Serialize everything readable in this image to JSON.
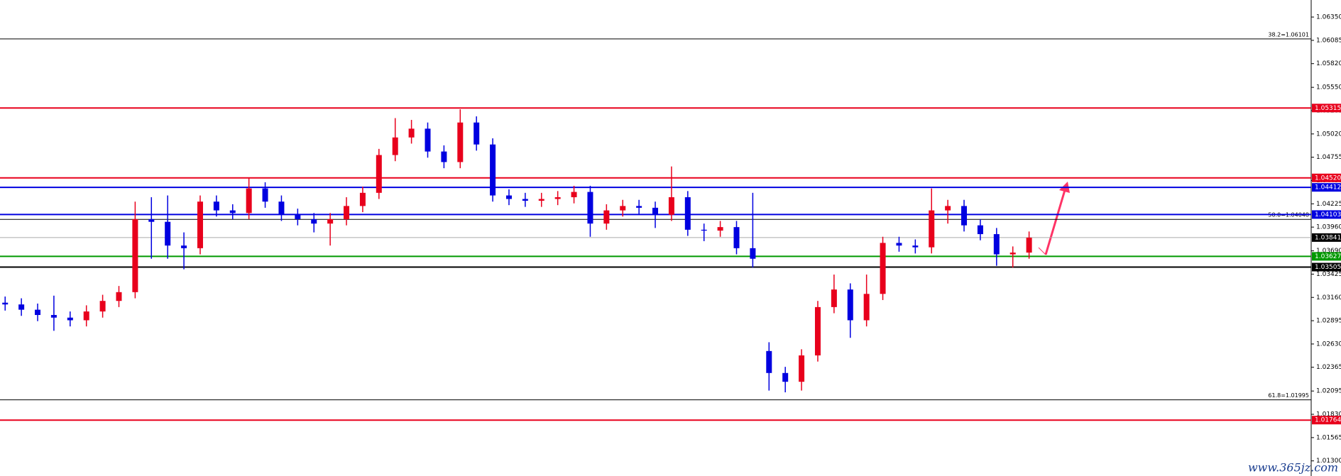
{
  "chart_data": {
    "type": "candlestick",
    "ylim": [
      1.01128,
      1.06544
    ],
    "yticks": [
      {
        "value": 1.0635,
        "label": "1.06350"
      },
      {
        "value": 1.06085,
        "label": "1.06085"
      },
      {
        "value": 1.0582,
        "label": "1.05820"
      },
      {
        "value": 1.0555,
        "label": "1.05550"
      },
      {
        "value": 1.05285,
        "label": "1.05285"
      },
      {
        "value": 1.0502,
        "label": "1.05020"
      },
      {
        "value": 1.04755,
        "label": "1.04755"
      },
      {
        "value": 1.0449,
        "label": "1.04490"
      },
      {
        "value": 1.04225,
        "label": "1.04225"
      },
      {
        "value": 1.0396,
        "label": "1.03960"
      },
      {
        "value": 1.0369,
        "label": "1.03690"
      },
      {
        "value": 1.03425,
        "label": "1.03425"
      },
      {
        "value": 1.0316,
        "label": "1.03160"
      },
      {
        "value": 1.02895,
        "label": "1.02895"
      },
      {
        "value": 1.0263,
        "label": "1.02630"
      },
      {
        "value": 1.02365,
        "label": "1.02365"
      },
      {
        "value": 1.02095,
        "label": "1.02095"
      },
      {
        "value": 1.0183,
        "label": "1.01830"
      },
      {
        "value": 1.01565,
        "label": "1.01565"
      },
      {
        "value": 1.013,
        "label": "1.01300"
      }
    ],
    "up_color": "#e8001c",
    "down_color": "#0000e0",
    "open": [
      1.031,
      1.0308,
      1.0302,
      1.0296,
      1.0293,
      1.029,
      1.03,
      1.0312,
      1.0322,
      1.0405,
      1.0402,
      1.0375,
      1.0372,
      1.0425,
      1.0415,
      1.0412,
      1.044,
      1.0425,
      1.041,
      1.0405,
      1.04,
      1.0405,
      1.042,
      1.0435,
      1.0478,
      1.0498,
      1.0508,
      1.0482,
      1.047,
      1.0515,
      1.049,
      1.0432,
      1.0428,
      1.0426,
      1.0428,
      1.043,
      1.0436,
      1.04,
      1.0415,
      1.042,
      1.0418,
      1.041,
      1.043,
      1.0393,
      1.0392,
      1.0396,
      1.0372,
      1.0255,
      1.023,
      1.022,
      1.025,
      1.0305,
      1.0325,
      1.029,
      1.032,
      1.0378,
      1.0375,
      1.0373,
      1.0415,
      1.042,
      1.0398,
      1.0388,
      1.0365,
      1.0367
    ],
    "high": [
      1.0317,
      1.0315,
      1.0309,
      1.0318,
      1.03,
      1.0307,
      1.0319,
      1.0329,
      1.0425,
      1.043,
      1.0432,
      1.039,
      1.0432,
      1.0432,
      1.0422,
      1.0452,
      1.0447,
      1.0432,
      1.0417,
      1.0412,
      1.0412,
      1.043,
      1.0442,
      1.0485,
      1.052,
      1.0518,
      1.0515,
      1.0489,
      1.053,
      1.0522,
      1.0497,
      1.0439,
      1.0435,
      1.0435,
      1.0437,
      1.0443,
      1.0443,
      1.0422,
      1.0427,
      1.0427,
      1.0425,
      1.0465,
      1.0437,
      1.04,
      1.0403,
      1.0403,
      1.0435,
      1.0265,
      1.0237,
      1.0257,
      1.0312,
      1.0342,
      1.0332,
      1.0342,
      1.0385,
      1.0385,
      1.0382,
      1.044,
      1.0427,
      1.0427,
      1.0405,
      1.0395,
      1.0374,
      1.0391
    ],
    "low": [
      1.0301,
      1.0295,
      1.0289,
      1.0278,
      1.0283,
      1.0283,
      1.0293,
      1.0305,
      1.0315,
      1.036,
      1.036,
      1.0348,
      1.0365,
      1.0408,
      1.0405,
      1.0405,
      1.0418,
      1.0403,
      1.0398,
      1.039,
      1.0375,
      1.0398,
      1.0413,
      1.0428,
      1.0471,
      1.0491,
      1.0475,
      1.0463,
      1.0463,
      1.0483,
      1.0425,
      1.0421,
      1.0419,
      1.0419,
      1.0421,
      1.0423,
      1.0385,
      1.0393,
      1.0408,
      1.0411,
      1.0395,
      1.0403,
      1.0386,
      1.038,
      1.0385,
      1.0365,
      1.035,
      1.021,
      1.0208,
      1.021,
      1.0243,
      1.0298,
      1.027,
      1.0283,
      1.0313,
      1.0368,
      1.0366,
      1.0366,
      1.04,
      1.0391,
      1.0381,
      1.0352,
      1.035,
      1.036
    ],
    "close": [
      1.0308,
      1.0302,
      1.0296,
      1.0293,
      1.029,
      1.03,
      1.0312,
      1.0322,
      1.0405,
      1.0402,
      1.0375,
      1.0372,
      1.0425,
      1.0415,
      1.0412,
      1.044,
      1.0425,
      1.041,
      1.0405,
      1.04,
      1.0405,
      1.042,
      1.0435,
      1.0478,
      1.0498,
      1.0508,
      1.0482,
      1.047,
      1.0515,
      1.049,
      1.0432,
      1.0428,
      1.0426,
      1.0428,
      1.043,
      1.0436,
      1.04,
      1.0415,
      1.042,
      1.0418,
      1.041,
      1.043,
      1.0393,
      1.0392,
      1.0396,
      1.0372,
      1.036,
      1.023,
      1.022,
      1.025,
      1.0305,
      1.0325,
      1.029,
      1.032,
      1.0378,
      1.0375,
      1.0373,
      1.0415,
      1.042,
      1.0398,
      1.0388,
      1.0365,
      1.0367,
      1.0384
    ],
    "levels": [
      {
        "value": 1.05315,
        "label": "1.05315",
        "color": "#e8001c"
      },
      {
        "value": 1.0452,
        "label": "1.04520",
        "color": "#e8001c"
      },
      {
        "value": 1.04412,
        "label": "1.04412",
        "color": "#0000e0"
      },
      {
        "value": 1.04103,
        "label": "1.04103",
        "color": "#0000e0"
      },
      {
        "value": 1.03841,
        "label": "1.03841",
        "color": "#000000"
      },
      {
        "value": 1.03627,
        "label": "1.03627",
        "color": "#009900"
      },
      {
        "value": 1.03505,
        "label": "1.03505",
        "color": "#000000"
      },
      {
        "value": 1.01764,
        "label": "1.01764",
        "color": "#e8001c"
      }
    ],
    "fib_levels": [
      {
        "value": 1.06101,
        "label": "38.2=1.06101"
      },
      {
        "value": 1.04048,
        "label": "50.0=1.04048"
      },
      {
        "value": 1.01995,
        "label": "61.8=1.01995"
      }
    ],
    "watermark": "www.365jz.com"
  }
}
